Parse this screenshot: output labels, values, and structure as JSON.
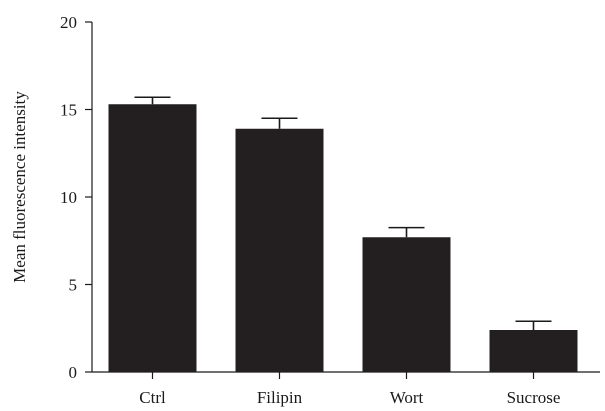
{
  "chart_data": {
    "type": "bar",
    "title": "",
    "xlabel": "",
    "ylabel": "Mean fluorescence intensity",
    "categories": [
      "Ctrl",
      "Filipin",
      "Wort",
      "Sucrose"
    ],
    "values": [
      15.3,
      13.9,
      7.7,
      2.4
    ],
    "errors": [
      0.4,
      0.6,
      0.55,
      0.5
    ],
    "ylim": [
      0,
      20
    ],
    "yticks": [
      0,
      5,
      10,
      15,
      20
    ],
    "grid": false,
    "bar_color": "#231f20"
  }
}
